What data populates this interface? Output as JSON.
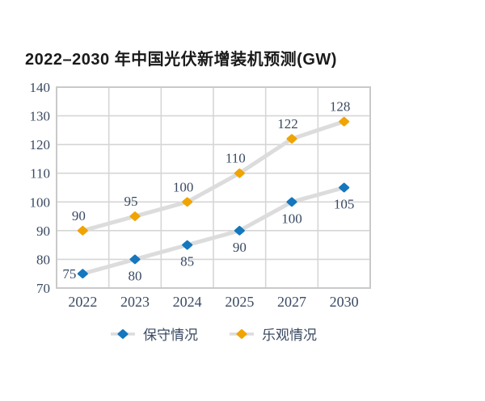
{
  "title": "2022–2030 年中国光伏新增装机预测(GW)",
  "colors": {
    "conservative": "#1577bd",
    "optimistic": "#f0a402",
    "series_line": "#dcdcdc",
    "grid": "#d6d6d6",
    "frame": "#c9c9c9",
    "tick_text": "#3a4a63",
    "title_text": "#1a1a1a"
  },
  "chart_data": {
    "type": "line",
    "title": "2022–2030 年中国光伏新增装机预测(GW)",
    "categories": [
      "2022",
      "2023",
      "2024",
      "2025",
      "2027",
      "2030"
    ],
    "series": [
      {
        "name": "保守情况",
        "color_key": "conservative",
        "values": [
          75,
          80,
          85,
          90,
          100,
          105
        ],
        "label_positions": [
          "left",
          "below",
          "below",
          "below",
          "below",
          "below"
        ]
      },
      {
        "name": "乐观情况",
        "color_key": "optimistic",
        "values": [
          90,
          95,
          100,
          110,
          122,
          128
        ],
        "label_positions": [
          "above",
          "above",
          "above",
          "above",
          "above",
          "above"
        ]
      }
    ],
    "xlabel": "",
    "ylabel": "",
    "ylim": [
      70,
      140
    ],
    "ytick_step": 10,
    "grid": true,
    "legend_position": "bottom"
  }
}
